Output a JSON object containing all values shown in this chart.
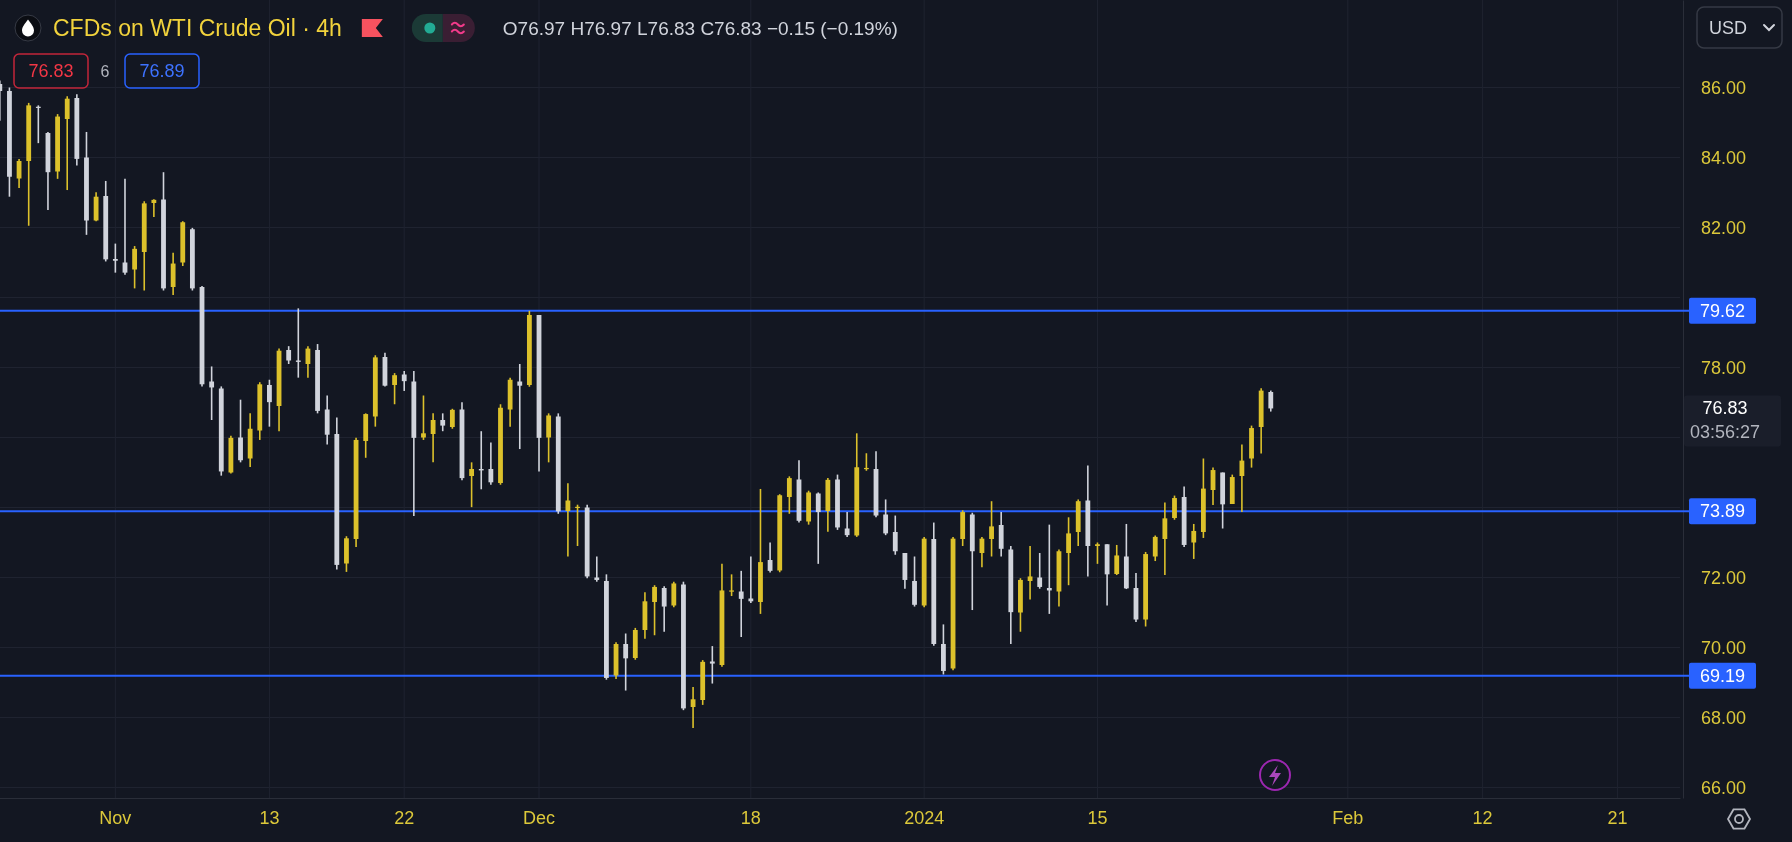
{
  "chart_data": {
    "type": "candlestick",
    "title": "CFDs on WTI Crude Oil · 4h",
    "subtitle": "O76.97 H76.97 L76.83 C76.83 −0.15 (−0.19%)",
    "categories": [
      null,
      null,
      null,
      null,
      null,
      null,
      null,
      null,
      null,
      null,
      null,
      null,
      "Nov",
      null,
      null,
      null,
      null,
      null,
      null,
      null,
      null,
      null,
      null,
      null,
      null,
      null,
      null,
      null,
      "13",
      null,
      null,
      null,
      null,
      null,
      null,
      null,
      null,
      null,
      null,
      null,
      null,
      null,
      "22",
      null,
      null,
      null,
      null,
      null,
      null,
      null,
      null,
      null,
      null,
      null,
      null,
      null,
      "Dec",
      null,
      null,
      null,
      null,
      null,
      null,
      null,
      null,
      null,
      null,
      null,
      null,
      null,
      null,
      null,
      null,
      null,
      null,
      null,
      null,
      null,
      "18",
      null,
      null,
      null,
      null,
      null,
      null,
      null,
      null,
      null,
      null,
      null,
      null,
      null,
      null,
      null,
      null,
      null,
      "2024",
      null,
      null,
      null,
      null,
      null,
      null,
      null,
      null,
      null,
      null,
      null,
      null,
      null,
      null,
      null,
      null,
      null,
      "15",
      null,
      null,
      null,
      null,
      null,
      null,
      null,
      null,
      null,
      null,
      null,
      null,
      null,
      null,
      null,
      null,
      null,
      null,
      null,
      null,
      null,
      null,
      null,
      null,
      null,
      "Feb",
      null,
      null,
      null,
      null,
      null,
      null,
      null,
      null,
      null,
      null,
      null,
      null,
      null,
      "12",
      null,
      null,
      null,
      null,
      null,
      null,
      null,
      null,
      null,
      null,
      null,
      null,
      null,
      "21",
      null,
      null,
      null,
      null,
      null,
      null
    ],
    "ohlc": [
      [
        86.1,
        86.2,
        85.05,
        85.9
      ],
      [
        85.9,
        86.0,
        82.88,
        83.45
      ],
      [
        83.4,
        83.96,
        83.13,
        83.9
      ],
      [
        83.9,
        85.56,
        82.05,
        85.49
      ],
      [
        85.45,
        85.49,
        84.41,
        85.43
      ],
      [
        84.7,
        84.73,
        82.5,
        83.58
      ],
      [
        83.6,
        85.24,
        83.39,
        85.17
      ],
      [
        85.1,
        85.75,
        83.07,
        85.68
      ],
      [
        85.7,
        85.81,
        83.77,
        83.96
      ],
      [
        84.0,
        84.73,
        81.79,
        82.2
      ],
      [
        82.2,
        83.01,
        82.18,
        82.88
      ],
      [
        82.9,
        83.33,
        81.03,
        81.09
      ],
      [
        81.1,
        81.54,
        80.71,
        81.05
      ],
      [
        81.0,
        83.39,
        80.65,
        80.71
      ],
      [
        80.8,
        81.47,
        80.26,
        81.39
      ],
      [
        81.3,
        82.75,
        80.2,
        82.69
      ],
      [
        82.7,
        82.81,
        82.3,
        82.79
      ],
      [
        82.8,
        83.58,
        80.2,
        80.26
      ],
      [
        80.3,
        81.28,
        80.07,
        80.97
      ],
      [
        81.0,
        82.18,
        80.9,
        82.15
      ],
      [
        81.95,
        81.99,
        80.2,
        80.26
      ],
      [
        80.3,
        80.33,
        77.46,
        77.52
      ],
      [
        77.6,
        78.03,
        76.5,
        77.43
      ],
      [
        77.4,
        77.46,
        74.91,
        75.03
      ],
      [
        75.0,
        76.05,
        74.97,
        75.99
      ],
      [
        76.0,
        77.08,
        75.29,
        75.35
      ],
      [
        75.4,
        76.69,
        75.16,
        76.25
      ],
      [
        76.2,
        77.58,
        75.93,
        77.52
      ],
      [
        77.5,
        77.65,
        76.31,
        77.01
      ],
      [
        76.9,
        78.54,
        76.18,
        78.48
      ],
      [
        78.5,
        78.61,
        78.1,
        78.2
      ],
      [
        78.2,
        79.69,
        77.71,
        78.16
      ],
      [
        78.1,
        78.61,
        77.71,
        78.54
      ],
      [
        78.5,
        78.67,
        76.69,
        76.76
      ],
      [
        76.8,
        77.2,
        75.8,
        76.08
      ],
      [
        76.1,
        76.57,
        72.23,
        72.36
      ],
      [
        72.4,
        73.18,
        72.16,
        73.12
      ],
      [
        73.1,
        75.99,
        72.87,
        75.93
      ],
      [
        75.9,
        76.69,
        75.42,
        76.67
      ],
      [
        76.6,
        78.35,
        76.31,
        78.29
      ],
      [
        78.3,
        78.42,
        77.46,
        77.48
      ],
      [
        77.5,
        77.84,
        76.95,
        77.78
      ],
      [
        77.8,
        77.9,
        77.33,
        77.61
      ],
      [
        77.6,
        77.9,
        73.76,
        75.99
      ],
      [
        76.0,
        77.2,
        75.93,
        76.12
      ],
      [
        76.1,
        76.69,
        75.29,
        76.5
      ],
      [
        76.5,
        76.69,
        76.18,
        76.34
      ],
      [
        76.3,
        76.82,
        76.25,
        76.79
      ],
      [
        76.8,
        77.01,
        74.78,
        74.84
      ],
      [
        74.9,
        75.29,
        74.01,
        75.1
      ],
      [
        75.1,
        76.18,
        74.52,
        75.06
      ],
      [
        75.1,
        75.86,
        74.65,
        74.72
      ],
      [
        74.7,
        76.95,
        74.65,
        76.85
      ],
      [
        76.8,
        77.71,
        76.31,
        77.65
      ],
      [
        77.6,
        78.1,
        75.67,
        77.48
      ],
      [
        77.5,
        79.62,
        77.45,
        79.5
      ],
      [
        79.5,
        79.5,
        75.03,
        75.99
      ],
      [
        76.0,
        76.69,
        75.29,
        76.63
      ],
      [
        76.6,
        76.69,
        73.82,
        73.89
      ],
      [
        73.9,
        74.69,
        72.6,
        74.2
      ],
      [
        74.0,
        74.08,
        72.9,
        74.02
      ],
      [
        74.0,
        74.08,
        71.98,
        72.03
      ],
      [
        72.0,
        72.6,
        71.88,
        71.93
      ],
      [
        71.9,
        72.09,
        69.08,
        69.13
      ],
      [
        69.2,
        70.15,
        69.1,
        70.1
      ],
      [
        70.1,
        70.4,
        68.77,
        69.69
      ],
      [
        69.7,
        70.56,
        69.65,
        70.5
      ],
      [
        70.5,
        71.58,
        70.25,
        71.32
      ],
      [
        71.3,
        71.78,
        70.35,
        71.73
      ],
      [
        71.7,
        71.75,
        70.45,
        71.17
      ],
      [
        71.2,
        71.88,
        71.15,
        71.83
      ],
      [
        71.8,
        71.88,
        68.21,
        68.26
      ],
      [
        68.3,
        68.87,
        67.7,
        68.52
      ],
      [
        68.5,
        69.64,
        68.36,
        69.59
      ],
      [
        69.6,
        70.04,
        68.97,
        69.54
      ],
      [
        69.5,
        72.39,
        69.45,
        71.63
      ],
      [
        71.6,
        72.09,
        71.47,
        71.63
      ],
      [
        71.6,
        72.19,
        70.3,
        71.39
      ],
      [
        71.4,
        72.6,
        71.27,
        71.32
      ],
      [
        71.3,
        74.53,
        70.96,
        72.44
      ],
      [
        72.5,
        73.0,
        72.14,
        72.19
      ],
      [
        72.2,
        74.38,
        72.15,
        74.35
      ],
      [
        74.3,
        74.89,
        73.82,
        74.84
      ],
      [
        74.8,
        75.35,
        73.57,
        73.62
      ],
      [
        73.6,
        74.48,
        73.51,
        74.43
      ],
      [
        74.4,
        74.43,
        72.39,
        73.87
      ],
      [
        73.9,
        74.84,
        73.31,
        74.79
      ],
      [
        74.8,
        74.94,
        73.36,
        73.43
      ],
      [
        73.4,
        73.87,
        73.16,
        73.21
      ],
      [
        73.2,
        76.12,
        73.16,
        75.15
      ],
      [
        75.1,
        75.55,
        75.05,
        75.13
      ],
      [
        75.1,
        75.61,
        73.72,
        73.77
      ],
      [
        73.8,
        74.23,
        73.21,
        73.26
      ],
      [
        73.3,
        73.77,
        72.65,
        72.75
      ],
      [
        72.7,
        72.7,
        71.68,
        71.93
      ],
      [
        71.9,
        72.6,
        71.17,
        71.22
      ],
      [
        71.2,
        73.16,
        71.15,
        73.11
      ],
      [
        73.1,
        73.57,
        70.05,
        70.1
      ],
      [
        70.1,
        70.66,
        69.23,
        69.33
      ],
      [
        69.4,
        73.16,
        69.35,
        73.11
      ],
      [
        73.1,
        73.92,
        72.9,
        73.87
      ],
      [
        73.8,
        73.85,
        71.07,
        72.75
      ],
      [
        72.7,
        73.16,
        72.29,
        73.11
      ],
      [
        73.1,
        74.18,
        72.6,
        73.46
      ],
      [
        73.5,
        73.87,
        72.6,
        72.82
      ],
      [
        72.8,
        72.9,
        70.1,
        71.01
      ],
      [
        71.0,
        71.98,
        70.45,
        71.93
      ],
      [
        71.9,
        72.9,
        71.37,
        72.03
      ],
      [
        72.0,
        72.7,
        71.68,
        71.73
      ],
      [
        71.7,
        73.51,
        70.96,
        71.63
      ],
      [
        71.6,
        72.8,
        71.17,
        72.75
      ],
      [
        72.7,
        73.72,
        71.78,
        73.26
      ],
      [
        73.3,
        74.23,
        72.9,
        74.18
      ],
      [
        74.2,
        75.2,
        72.03,
        72.9
      ],
      [
        72.9,
        73.0,
        72.39,
        72.95
      ],
      [
        72.95,
        72.95,
        71.2,
        72.09
      ],
      [
        72.1,
        72.93,
        72.07,
        72.63
      ],
      [
        72.6,
        73.53,
        71.67,
        71.69
      ],
      [
        71.7,
        72.13,
        70.73,
        70.8
      ],
      [
        70.8,
        72.73,
        70.6,
        72.67
      ],
      [
        72.6,
        73.2,
        72.47,
        73.16
      ],
      [
        73.1,
        74.14,
        72.07,
        73.69
      ],
      [
        73.7,
        74.34,
        73.65,
        74.27
      ],
      [
        74.3,
        74.6,
        72.87,
        72.93
      ],
      [
        73.0,
        73.53,
        72.53,
        73.33
      ],
      [
        73.3,
        75.4,
        73.13,
        74.54
      ],
      [
        74.5,
        75.14,
        74.07,
        75.07
      ],
      [
        75.0,
        75.0,
        73.4,
        74.09
      ],
      [
        74.1,
        74.94,
        74.1,
        74.87
      ],
      [
        74.9,
        75.8,
        73.87,
        75.34
      ],
      [
        75.4,
        76.34,
        75.14,
        76.27
      ],
      [
        76.3,
        77.41,
        75.54,
        77.34
      ],
      [
        77.3,
        77.34,
        76.74,
        76.83
      ],
      null,
      null,
      null,
      null,
      null,
      null,
      null,
      null,
      null,
      null,
      null,
      null,
      null,
      null,
      null,
      null,
      null,
      null,
      null,
      null,
      null,
      null,
      null,
      null,
      null,
      null,
      null,
      null,
      null,
      null,
      null,
      null,
      null,
      null,
      null,
      null,
      null,
      null,
      null,
      null,
      null,
      null
    ],
    "colors": [
      "#d1d4dc",
      "#d1d4dc",
      "#dcc12b",
      "#dcc12b",
      "#d1d4dc",
      "#d1d4dc",
      "#dcc12b",
      "#dcc12b",
      "#d1d4dc",
      "#d1d4dc",
      "#dcc12b",
      "#d1d4dc",
      "#d1d4dc",
      "#d1d4dc",
      "#dcc12b",
      "#dcc12b",
      "#dcc12b",
      "#d1d4dc",
      "#dcc12b",
      "#dcc12b",
      "#d1d4dc",
      "#d1d4dc",
      "#d1d4dc",
      "#d1d4dc",
      "#dcc12b",
      "#d1d4dc",
      "#dcc12b",
      "#dcc12b",
      "#d1d4dc",
      "#dcc12b",
      "#d1d4dc",
      "#d1d4dc",
      "#dcc12b",
      "#d1d4dc",
      "#d1d4dc",
      "#d1d4dc",
      "#dcc12b",
      "#dcc12b",
      "#dcc12b",
      "#dcc12b",
      "#d1d4dc",
      "#dcc12b",
      "#d1d4dc",
      "#d1d4dc",
      "#dcc12b",
      "#dcc12b",
      "#d1d4dc",
      "#dcc12b",
      "#d1d4dc",
      "#dcc12b",
      "#d1d4dc",
      "#d1d4dc",
      "#dcc12b",
      "#dcc12b",
      "#d1d4dc",
      "#dcc12b",
      "#d1d4dc",
      "#dcc12b",
      "#d1d4dc",
      "#dcc12b",
      "#dcc12b",
      "#d1d4dc",
      "#d1d4dc",
      "#d1d4dc",
      "#dcc12b",
      "#d1d4dc",
      "#dcc12b",
      "#dcc12b",
      "#dcc12b",
      "#d1d4dc",
      "#dcc12b",
      "#d1d4dc",
      "#dcc12b",
      "#dcc12b",
      "#d1d4dc",
      "#dcc12b",
      "#dcc12b",
      "#d1d4dc",
      "#d1d4dc",
      "#dcc12b",
      "#d1d4dc",
      "#dcc12b",
      "#dcc12b",
      "#d1d4dc",
      "#dcc12b",
      "#d1d4dc",
      "#dcc12b",
      "#d1d4dc",
      "#d1d4dc",
      "#dcc12b",
      "#dcc12b",
      "#d1d4dc",
      "#d1d4dc",
      "#d1d4dc",
      "#d1d4dc",
      "#d1d4dc",
      "#dcc12b",
      "#d1d4dc",
      "#d1d4dc",
      "#dcc12b",
      "#dcc12b",
      "#d1d4dc",
      "#dcc12b",
      "#dcc12b",
      "#d1d4dc",
      "#d1d4dc",
      "#dcc12b",
      "#dcc12b",
      "#d1d4dc",
      "#d1d4dc",
      "#dcc12b",
      "#dcc12b",
      "#dcc12b",
      "#d1d4dc",
      "#dcc12b",
      "#d1d4dc",
      "#dcc12b",
      "#d1d4dc",
      "#d1d4dc",
      "#dcc12b",
      "#dcc12b",
      "#dcc12b",
      "#dcc12b",
      "#d1d4dc",
      "#dcc12b",
      "#dcc12b",
      "#dcc12b",
      "#d1d4dc",
      "#dcc12b",
      "#dcc12b",
      "#dcc12b",
      "#dcc12b",
      "#d1d4dc",
      null,
      null,
      null,
      null,
      null,
      null,
      null,
      null,
      null,
      null,
      null,
      null,
      null,
      null,
      null,
      null,
      null,
      null,
      null,
      null,
      null,
      null,
      null,
      null,
      null,
      null,
      null,
      null,
      null,
      null,
      null,
      null,
      null,
      null,
      null,
      null,
      null,
      null,
      null,
      null,
      null,
      null
    ],
    "ylim": [
      65.7,
      88.5
    ],
    "yticks": [
      {
        "value": 66,
        "label": "66.00"
      },
      {
        "value": 68,
        "label": "68.00"
      },
      {
        "value": 70,
        "label": "70.00"
      },
      {
        "value": 72,
        "label": "72.00"
      },
      {
        "value": 74,
        "label": null
      },
      {
        "value": 76,
        "label": null
      },
      {
        "value": 78,
        "label": "78.00"
      },
      {
        "value": 80,
        "label": null
      },
      {
        "value": 82,
        "label": "82.00"
      },
      {
        "value": 84,
        "label": "84.00"
      },
      {
        "value": 86,
        "label": "86.00"
      }
    ],
    "grid": true,
    "ref_lines": [
      {
        "axis": "y",
        "value": 79.62,
        "label": "79.62",
        "color": "#2962ff"
      },
      {
        "axis": "y",
        "value": 73.89,
        "label": "73.89",
        "color": "#2962ff"
      },
      {
        "axis": "y",
        "value": 69.19,
        "label": "69.19",
        "color": "#2962ff"
      }
    ],
    "annotations": [
      "76.83",
      "03:56:27",
      "76.83",
      "6",
      "76.89",
      "USD"
    ]
  }
}
